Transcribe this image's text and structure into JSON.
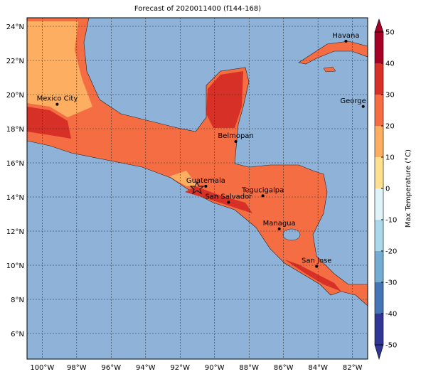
{
  "chart_data": {
    "type": "map",
    "title": "Forecast of 2020011400 (f144-168)",
    "xlim": [
      -100.88,
      -81.12
    ],
    "ylim": [
      4.5,
      24.5
    ],
    "xticks": [
      {
        "value": -100,
        "label": "100°W"
      },
      {
        "value": -98,
        "label": "98°W"
      },
      {
        "value": -96,
        "label": "96°W"
      },
      {
        "value": -94,
        "label": "94°W"
      },
      {
        "value": -92,
        "label": "92°W"
      },
      {
        "value": -90,
        "label": "90°W"
      },
      {
        "value": -88,
        "label": "88°W"
      },
      {
        "value": -86,
        "label": "86°W"
      },
      {
        "value": -84,
        "label": "84°W"
      },
      {
        "value": -82,
        "label": "82°W"
      }
    ],
    "yticks": [
      {
        "value": 6,
        "label": "6°N"
      },
      {
        "value": 8,
        "label": "8°N"
      },
      {
        "value": 10,
        "label": "10°N"
      },
      {
        "value": 12,
        "label": "12°N"
      },
      {
        "value": 14,
        "label": "14°N"
      },
      {
        "value": 16,
        "label": "16°N"
      },
      {
        "value": 18,
        "label": "18°N"
      },
      {
        "value": 20,
        "label": "20°N"
      },
      {
        "value": 22,
        "label": "22°N"
      },
      {
        "value": 24,
        "label": "24°N"
      }
    ],
    "grid": true,
    "cities": [
      {
        "name": "Havana",
        "lon": -82.38,
        "lat": 23.13
      },
      {
        "name": "Mexico City",
        "lon": -99.13,
        "lat": 19.43
      },
      {
        "name": "George Town",
        "lon": -81.38,
        "lat": 19.3
      },
      {
        "name": "Belmopan",
        "lon": -88.77,
        "lat": 17.25
      },
      {
        "name": "Guatemala",
        "lon": -90.51,
        "lat": 14.63
      },
      {
        "name": "San Salvador",
        "lon": -89.19,
        "lat": 13.69
      },
      {
        "name": "Tegucigalpa",
        "lon": -87.2,
        "lat": 14.07
      },
      {
        "name": "Managua",
        "lon": -86.25,
        "lat": 12.13
      },
      {
        "name": "San Jose",
        "lon": -84.08,
        "lat": 9.93
      }
    ],
    "colorbar": {
      "label": "Max Temperature (°C)",
      "lim": [
        -50,
        50
      ],
      "ticks": [
        50,
        40,
        30,
        20,
        10,
        0,
        -10,
        -20,
        -30,
        -40,
        -50
      ],
      "colors": [
        "#313695",
        "#4575b4",
        "#74add1",
        "#abd9e9",
        "#e0f3f8",
        "#fee090",
        "#fdae61",
        "#f46d43",
        "#d73027",
        "#a50026"
      ]
    }
  }
}
